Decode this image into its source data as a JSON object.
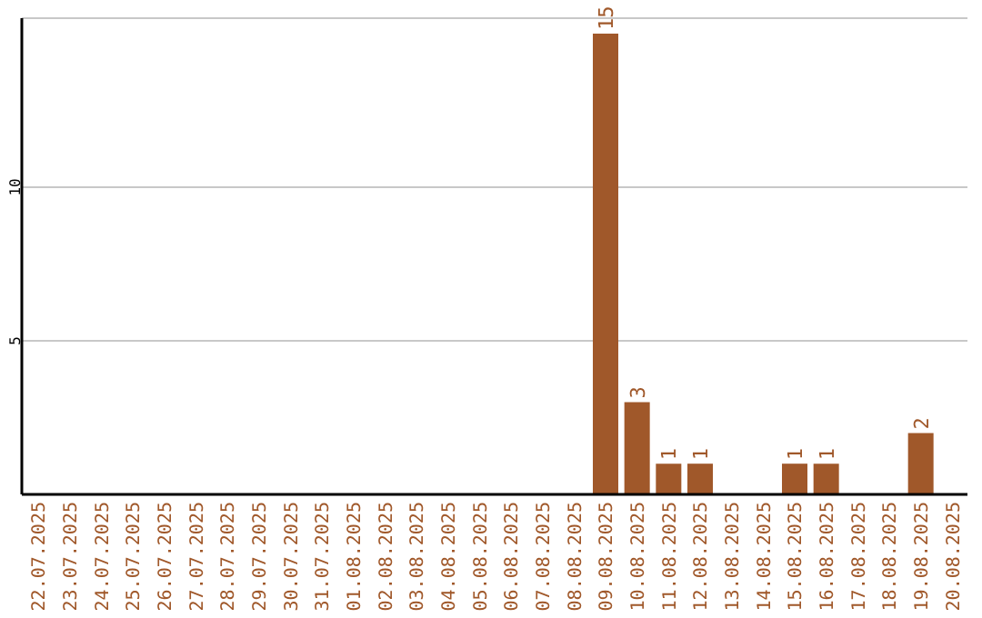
{
  "chart_data": {
    "type": "bar",
    "categories": [
      "22.07.2025",
      "23.07.2025",
      "24.07.2025",
      "25.07.2025",
      "26.07.2025",
      "27.07.2025",
      "28.07.2025",
      "29.07.2025",
      "30.07.2025",
      "31.07.2025",
      "01.08.2025",
      "02.08.2025",
      "03.08.2025",
      "04.08.2025",
      "05.08.2025",
      "06.08.2025",
      "07.08.2025",
      "08.08.2025",
      "09.08.2025",
      "10.08.2025",
      "11.08.2025",
      "12.08.2025",
      "13.08.2025",
      "14.08.2025",
      "15.08.2025",
      "16.08.2025",
      "17.08.2025",
      "18.08.2025",
      "19.08.2025",
      "20.08.2025"
    ],
    "values": [
      0,
      0,
      0,
      0,
      0,
      0,
      0,
      0,
      0,
      0,
      0,
      0,
      0,
      0,
      0,
      0,
      0,
      0,
      15,
      3,
      1,
      1,
      0,
      0,
      1,
      1,
      0,
      0,
      2,
      0
    ],
    "value_labels": [
      null,
      null,
      null,
      null,
      null,
      null,
      null,
      null,
      null,
      null,
      null,
      null,
      null,
      null,
      null,
      null,
      null,
      null,
      "15",
      "3",
      "1",
      "1",
      null,
      null,
      "1",
      "1",
      null,
      null,
      "2",
      null
    ],
    "color": "#a0582a",
    "ylim": [
      0,
      15.5
    ],
    "yticks": [
      5,
      10
    ],
    "grid": "y"
  }
}
